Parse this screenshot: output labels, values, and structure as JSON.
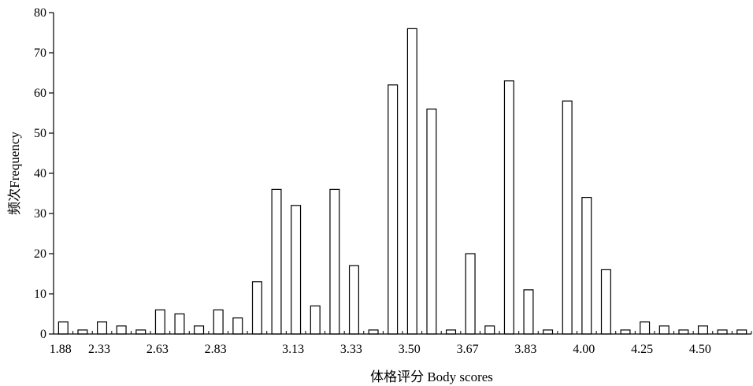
{
  "chart_data": {
    "type": "bar",
    "xlabel": "体格评分 Body scores",
    "ylabel": "频次Frequency",
    "ylim": [
      0,
      80
    ],
    "yticks": [
      "0",
      "10",
      "20",
      "30",
      "40",
      "50",
      "60",
      "70",
      "80"
    ],
    "xtick_labels": [
      "1.88",
      "2.33",
      "2.63",
      "2.83",
      "3.13",
      "3.33",
      "3.50",
      "3.67",
      "3.83",
      "4.00",
      "4.25",
      "4.50"
    ],
    "grid": false,
    "legend": "none",
    "values": [
      3,
      1,
      3,
      2,
      1,
      6,
      5,
      2,
      6,
      4,
      13,
      36,
      32,
      7,
      36,
      17,
      1,
      62,
      76,
      56,
      1,
      20,
      2,
      63,
      11,
      1,
      58,
      34,
      16,
      1,
      3,
      2,
      1,
      2,
      1,
      1
    ],
    "bar_fill": "#ffffff",
    "bar_stroke": "#000000"
  }
}
